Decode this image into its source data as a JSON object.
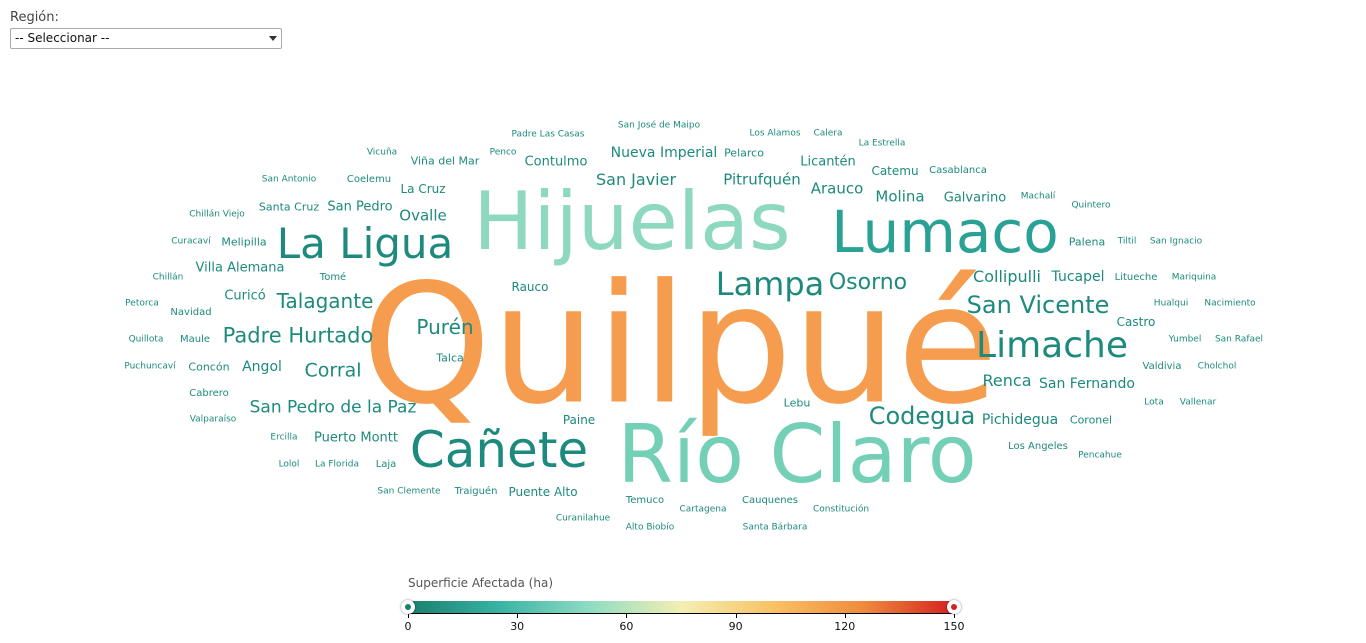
{
  "filter": {
    "label": "Región:",
    "selected": "-- Seleccionar --"
  },
  "legend": {
    "title": "Superficie Afectada (ha)",
    "ticks": [
      "0",
      "30",
      "60",
      "90",
      "120",
      "150"
    ],
    "gradient": [
      "#1a7f6e",
      "#38b3a5",
      "#8fdcc2",
      "#f3efb3",
      "#f9c265",
      "#ef8b3e",
      "#d4211e"
    ],
    "min_handle_color": "#1a7f6e",
    "max_handle_color": "#d4211e"
  },
  "chart_data": {
    "type": "wordcloud",
    "words": [
      {
        "text": "Quilpué",
        "color": "#f59c4f"
      },
      {
        "text": "Hijuelas",
        "color": "#8ed8c0"
      },
      {
        "text": "Río Claro",
        "color": "#74cfb7"
      },
      {
        "text": "Lumaco",
        "color": "#2aa195"
      },
      {
        "text": "Cañete",
        "color": "#1d8a7d"
      },
      {
        "text": "La Ligua",
        "color": "#1d8a7d"
      },
      {
        "text": "Limache",
        "color": "#1d8a7d"
      },
      {
        "text": "Lampa",
        "color": "#1d8a7d"
      },
      {
        "text": "Osorno",
        "color": "#1d8a7d"
      },
      {
        "text": "San Vicente",
        "color": "#1d8a7d"
      },
      {
        "text": "Codegua",
        "color": "#1d8a7d"
      },
      {
        "text": "Talagante",
        "color": "#1d8a7d"
      },
      {
        "text": "Padre Hurtado",
        "color": "#1d8a7d"
      },
      {
        "text": "Purén",
        "color": "#1d8a7d"
      },
      {
        "text": "San Pedro de la Paz",
        "color": "#1d8a7d"
      },
      {
        "text": "Corral",
        "color": "#1d8a7d"
      },
      {
        "text": "Collipulli",
        "color": "#1d8a7d"
      },
      {
        "text": "Tucapel",
        "color": "#1d8a7d"
      },
      {
        "text": "Renca",
        "color": "#1d8a7d"
      },
      {
        "text": "San Fernando",
        "color": "#1d8a7d"
      },
      {
        "text": "Pichidegua",
        "color": "#1d8a7d"
      },
      {
        "text": "Puerto Montt",
        "color": "#1d8a7d"
      },
      {
        "text": "San Javier",
        "color": "#1d8a7d"
      },
      {
        "text": "Nueva Imperial",
        "color": "#1d8a7d"
      },
      {
        "text": "Pitrufquén",
        "color": "#1d8a7d"
      },
      {
        "text": "Arauco",
        "color": "#1d8a7d"
      },
      {
        "text": "Molina",
        "color": "#1d8a7d"
      },
      {
        "text": "Galvarino",
        "color": "#1d8a7d"
      },
      {
        "text": "Ovalle",
        "color": "#1d8a7d"
      },
      {
        "text": "San Pedro",
        "color": "#1d8a7d"
      },
      {
        "text": "Contulmo",
        "color": "#1d8a7d"
      },
      {
        "text": "Licantén",
        "color": "#1d8a7d"
      },
      {
        "text": "Catemu",
        "color": "#1d8a7d"
      },
      {
        "text": "Angol",
        "color": "#1d8a7d"
      },
      {
        "text": "Villa Alemana",
        "color": "#1d8a7d"
      },
      {
        "text": "Curicó",
        "color": "#1d8a7d"
      },
      {
        "text": "Palena",
        "color": "#1d8a7d"
      },
      {
        "text": "Castro",
        "color": "#1d8a7d"
      },
      {
        "text": "Coronel",
        "color": "#1d8a7d"
      },
      {
        "text": "Paine",
        "color": "#1d8a7d"
      },
      {
        "text": "Lebu",
        "color": "#1d8a7d"
      },
      {
        "text": "Rauco",
        "color": "#1d8a7d"
      },
      {
        "text": "Talca",
        "color": "#1d8a7d"
      },
      {
        "text": "La Cruz",
        "color": "#1d8a7d"
      },
      {
        "text": "Viña del Mar",
        "color": "#1d8a7d"
      },
      {
        "text": "Penco",
        "color": "#1d8a7d"
      },
      {
        "text": "Padre Las Casas",
        "color": "#1d8a7d"
      },
      {
        "text": "San José de Maipo",
        "color": "#1d8a7d"
      },
      {
        "text": "Los Alamos",
        "color": "#1d8a7d"
      },
      {
        "text": "Calera",
        "color": "#1d8a7d"
      },
      {
        "text": "La Estrella",
        "color": "#1d8a7d"
      },
      {
        "text": "Pelarco",
        "color": "#1d8a7d"
      },
      {
        "text": "Casablanca",
        "color": "#1d8a7d"
      },
      {
        "text": "Machalí",
        "color": "#1d8a7d"
      },
      {
        "text": "Quintero",
        "color": "#1d8a7d"
      },
      {
        "text": "Tiltil",
        "color": "#1d8a7d"
      },
      {
        "text": "San Ignacio",
        "color": "#1d8a7d"
      },
      {
        "text": "Litueche",
        "color": "#1d8a7d"
      },
      {
        "text": "Mariquina",
        "color": "#1d8a7d"
      },
      {
        "text": "Hualqui",
        "color": "#1d8a7d"
      },
      {
        "text": "Nacimiento",
        "color": "#1d8a7d"
      },
      {
        "text": "Yumbel",
        "color": "#1d8a7d"
      },
      {
        "text": "San Rafael",
        "color": "#1d8a7d"
      },
      {
        "text": "Valdivia",
        "color": "#1d8a7d"
      },
      {
        "text": "Cholchol",
        "color": "#1d8a7d"
      },
      {
        "text": "Lota",
        "color": "#1d8a7d"
      },
      {
        "text": "Vallenar",
        "color": "#1d8a7d"
      },
      {
        "text": "Los Angeles",
        "color": "#1d8a7d"
      },
      {
        "text": "Pencahue",
        "color": "#1d8a7d"
      },
      {
        "text": "Vicuña",
        "color": "#1d8a7d"
      },
      {
        "text": "San Antonio",
        "color": "#1d8a7d"
      },
      {
        "text": "Coelemu",
        "color": "#1d8a7d"
      },
      {
        "text": "Santa Cruz",
        "color": "#1d8a7d"
      },
      {
        "text": "Chillán Viejo",
        "color": "#1d8a7d"
      },
      {
        "text": "Curacaví",
        "color": "#1d8a7d"
      },
      {
        "text": "Melipilla",
        "color": "#1d8a7d"
      },
      {
        "text": "Chillán",
        "color": "#1d8a7d"
      },
      {
        "text": "Tomé",
        "color": "#1d8a7d"
      },
      {
        "text": "Petorca",
        "color": "#1d8a7d"
      },
      {
        "text": "Navidad",
        "color": "#1d8a7d"
      },
      {
        "text": "Quillota",
        "color": "#1d8a7d"
      },
      {
        "text": "Maule",
        "color": "#1d8a7d"
      },
      {
        "text": "Puchuncaví",
        "color": "#1d8a7d"
      },
      {
        "text": "Concón",
        "color": "#1d8a7d"
      },
      {
        "text": "Cabrero",
        "color": "#1d8a7d"
      },
      {
        "text": "Valparaíso",
        "color": "#1d8a7d"
      },
      {
        "text": "Ercilla",
        "color": "#1d8a7d"
      },
      {
        "text": "Lolol",
        "color": "#1d8a7d"
      },
      {
        "text": "La Florida",
        "color": "#1d8a7d"
      },
      {
        "text": "Laja",
        "color": "#1d8a7d"
      },
      {
        "text": "San Clemente",
        "color": "#1d8a7d"
      },
      {
        "text": "Traiguén",
        "color": "#1d8a7d"
      },
      {
        "text": "Puente Alto",
        "color": "#1d8a7d"
      },
      {
        "text": "Curanilahue",
        "color": "#1d8a7d"
      },
      {
        "text": "Temuco",
        "color": "#1d8a7d"
      },
      {
        "text": "Alto Biobío",
        "color": "#1d8a7d"
      },
      {
        "text": "Cartagena",
        "color": "#1d8a7d"
      },
      {
        "text": "Cauquenes",
        "color": "#1d8a7d"
      },
      {
        "text": "Santa Bárbara",
        "color": "#1d8a7d"
      },
      {
        "text": "Constitución",
        "color": "#1d8a7d"
      }
    ]
  }
}
